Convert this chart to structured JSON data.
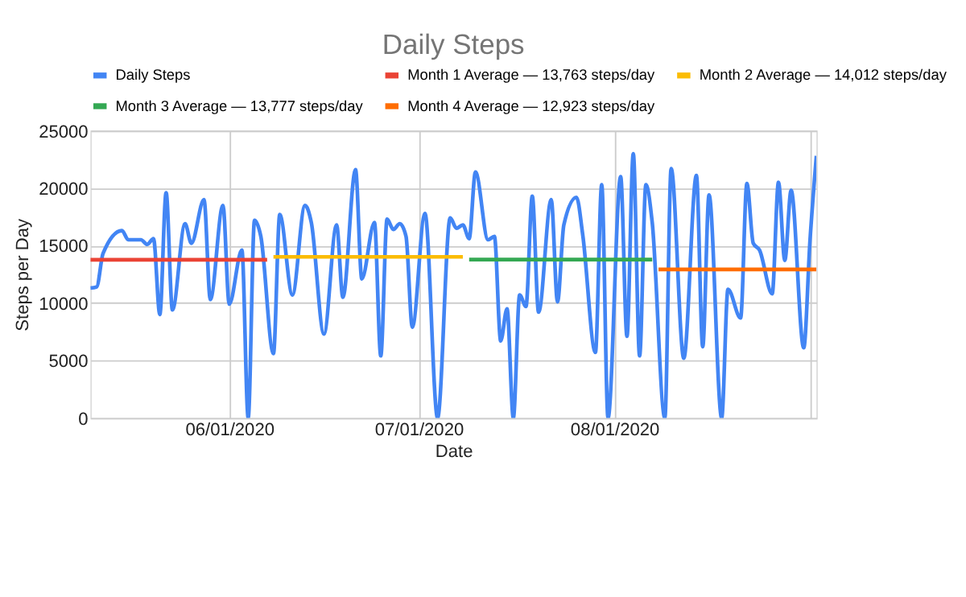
{
  "chart_data": {
    "type": "line",
    "title": "Daily Steps",
    "xlabel": "Date",
    "ylabel": "Steps per Day",
    "xlim": [
      "2020-05-10",
      "2020-09-02"
    ],
    "xticks": [
      {
        "value": "2020-06-01",
        "label": "06/01/2020"
      },
      {
        "value": "2020-07-01",
        "label": "07/01/2020"
      },
      {
        "value": "2020-08-01",
        "label": "08/01/2020"
      },
      {
        "value": "2020-09-01",
        "label": null
      }
    ],
    "ylim": [
      0,
      25000
    ],
    "yticks": [
      0,
      5000,
      10000,
      15000,
      20000,
      25000
    ],
    "grid": true,
    "legend": "top",
    "line_style": "solid",
    "series": [
      {
        "name": "Daily Steps",
        "color": "#4285f4",
        "x": [
          "2020-05-10",
          "2020-05-11",
          "2020-05-12",
          "2020-05-15",
          "2020-05-16",
          "2020-05-18",
          "2020-05-19",
          "2020-05-20",
          "2020-05-21",
          "2020-05-22",
          "2020-05-23",
          "2020-05-25",
          "2020-05-26",
          "2020-05-28",
          "2020-05-29",
          "2020-05-31",
          "2020-06-01",
          "2020-06-03",
          "2020-06-04",
          "2020-06-05",
          "2020-06-06",
          "2020-06-08",
          "2020-06-09",
          "2020-06-11",
          "2020-06-13",
          "2020-06-14",
          "2020-06-16",
          "2020-06-18",
          "2020-06-19",
          "2020-06-21",
          "2020-06-22",
          "2020-06-24",
          "2020-06-25",
          "2020-06-26",
          "2020-06-27",
          "2020-06-28",
          "2020-06-29",
          "2020-06-30",
          "2020-07-02",
          "2020-07-04",
          "2020-07-06",
          "2020-07-07",
          "2020-07-08",
          "2020-07-09",
          "2020-07-10",
          "2020-07-12",
          "2020-07-13",
          "2020-07-14",
          "2020-07-15",
          "2020-07-16",
          "2020-07-17",
          "2020-07-18",
          "2020-07-19",
          "2020-07-20",
          "2020-07-22",
          "2020-07-23",
          "2020-07-24",
          "2020-07-26",
          "2020-07-27",
          "2020-07-29",
          "2020-07-30",
          "2020-07-31",
          "2020-08-02",
          "2020-08-03",
          "2020-08-04",
          "2020-08-05",
          "2020-08-06",
          "2020-08-07",
          "2020-08-09",
          "2020-08-10",
          "2020-08-12",
          "2020-08-14",
          "2020-08-15",
          "2020-08-16",
          "2020-08-18",
          "2020-08-19",
          "2020-08-21",
          "2020-08-22",
          "2020-08-23",
          "2020-08-24",
          "2020-08-26",
          "2020-08-27",
          "2020-08-28",
          "2020-08-29",
          "2020-08-31",
          "2020-09-01",
          "2020-09-02"
        ],
        "values": [
          11300,
          11400,
          14300,
          16300,
          15500,
          15500,
          15100,
          15600,
          9000,
          19600,
          9400,
          16900,
          15200,
          19000,
          10300,
          18500,
          9900,
          14600,
          0,
          17200,
          15800,
          5600,
          17700,
          10700,
          18500,
          17000,
          7300,
          16800,
          10500,
          21600,
          12100,
          17000,
          5400,
          17300,
          16400,
          16900,
          15800,
          7900,
          17800,
          0,
          17400,
          16500,
          16800,
          15600,
          21400,
          15500,
          15800,
          6700,
          9500,
          0,
          10700,
          9700,
          19300,
          9200,
          19000,
          10100,
          16800,
          19200,
          15900,
          5700,
          20300,
          0,
          21000,
          7100,
          23000,
          5400,
          20300,
          17000,
          0,
          21700,
          5200,
          21100,
          6200,
          19400,
          0,
          11200,
          8700,
          20400,
          15200,
          14600,
          10800,
          20500,
          13700,
          19800,
          6100,
          15500,
          22800
        ]
      },
      {
        "name": "Month 1 Average — 13,763 steps/day",
        "color": "#ea4335",
        "x": [
          "2020-05-10",
          "2020-06-07"
        ],
        "values": [
          13763,
          13763
        ]
      },
      {
        "name": "Month 2 Average — 14,012 steps/day",
        "color": "#fbbc04",
        "x": [
          "2020-06-08",
          "2020-07-08"
        ],
        "values": [
          14012,
          14012
        ]
      },
      {
        "name": "Month 3 Average — 13,777 steps/day",
        "color": "#34a853",
        "x": [
          "2020-07-09",
          "2020-08-07"
        ],
        "values": [
          13777,
          13777
        ]
      },
      {
        "name": "Month 4 Average — 12,923 steps/day",
        "color": "#ff6d01",
        "x": [
          "2020-08-08",
          "2020-09-02"
        ],
        "values": [
          12923,
          12923
        ]
      }
    ]
  }
}
